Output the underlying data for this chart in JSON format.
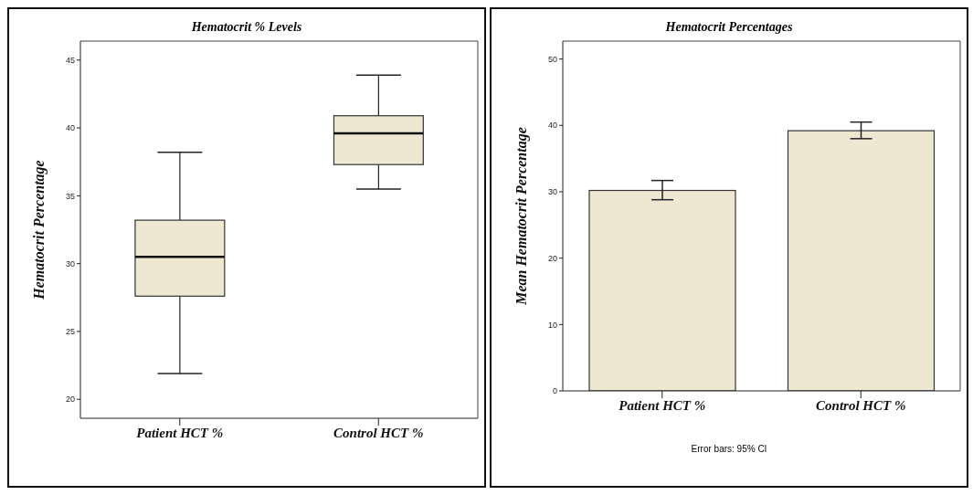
{
  "chart_data": [
    {
      "type": "box",
      "title": "Hematocrit % Levels",
      "ylabel": "Hematocrit Percentage",
      "categories": [
        "Patient HCT %",
        "Control HCT %"
      ],
      "color": "#eee8d2",
      "boxes": [
        {
          "low": 21.9,
          "q1": 27.6,
          "median": 30.5,
          "q3": 33.2,
          "high": 38.2
        },
        {
          "low": 35.5,
          "q1": 37.3,
          "median": 39.6,
          "q3": 40.9,
          "high": 43.9
        }
      ],
      "ylim": [
        18.6,
        46.4
      ],
      "yticks": [
        20,
        25,
        30,
        35,
        40,
        45
      ],
      "grid": false,
      "legend": false
    },
    {
      "type": "bar",
      "title": "Hematocrit Percentages",
      "ylabel": "Mean Hematocrit Percentage",
      "categories": [
        "Patient HCT %",
        "Control HCT %"
      ],
      "color": "#eee8d2",
      "values": [
        30.2,
        39.2
      ],
      "errors": [
        [
          28.8,
          31.7
        ],
        [
          38.0,
          40.5
        ]
      ],
      "ylim": [
        0,
        52.7
      ],
      "yticks": [
        0,
        10,
        20,
        30,
        40,
        50
      ],
      "grid": false,
      "legend": false,
      "annotations": [
        "Error bars: 95% CI"
      ]
    }
  ]
}
